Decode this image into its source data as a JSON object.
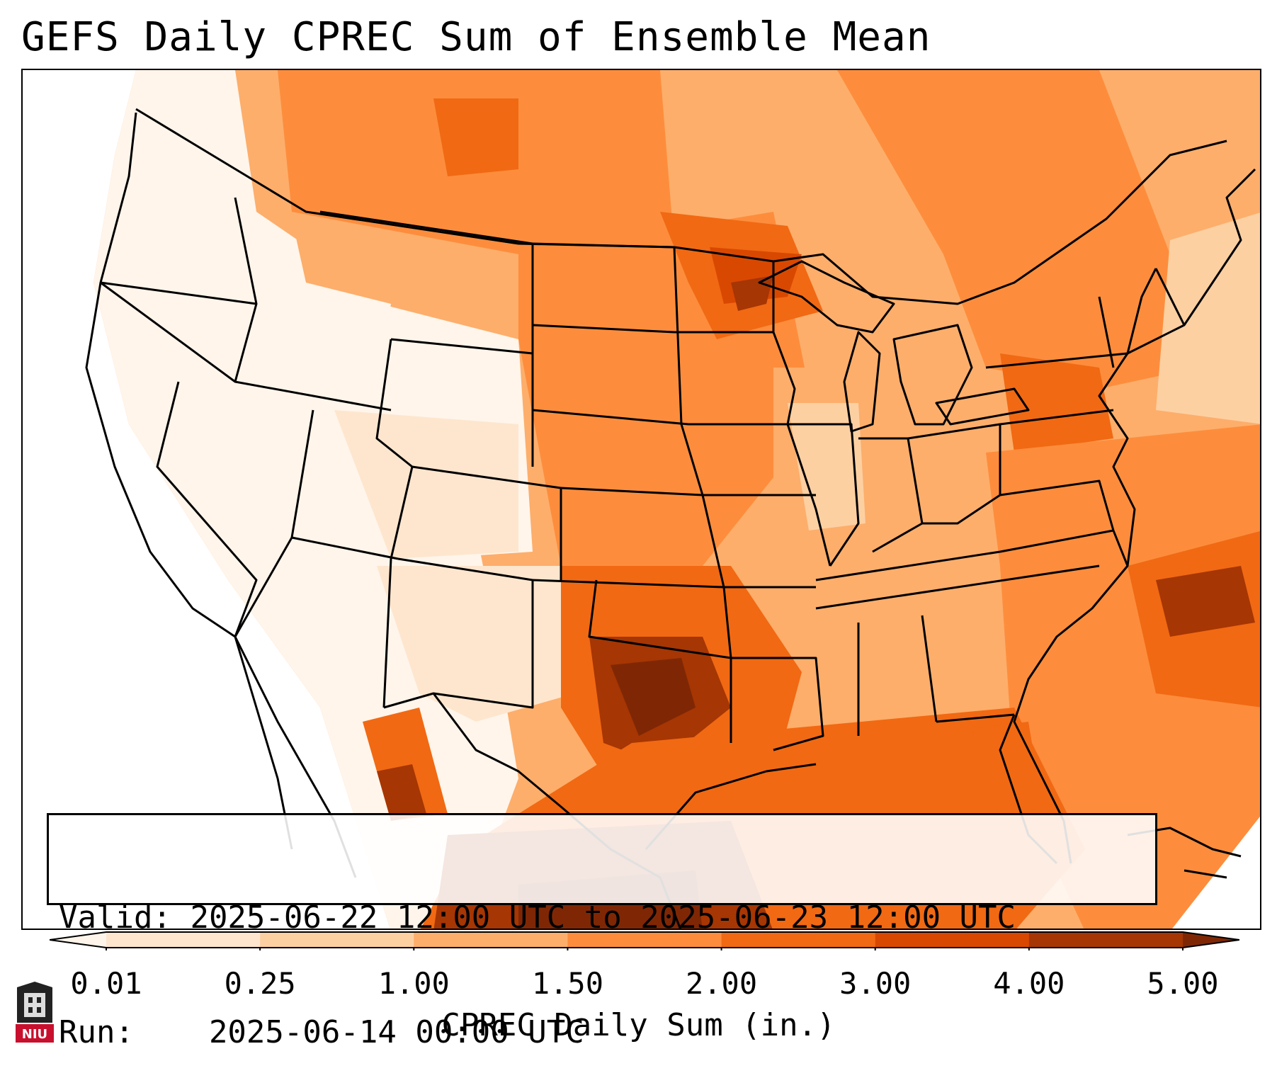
{
  "title": "GEFS Daily CPREC Sum of Ensemble Mean",
  "info": {
    "valid_label": "Valid:",
    "valid_value": "2025-06-22 12:00 UTC to 2025-06-23 12:00 UTC",
    "run_label": "Run:",
    "run_value": "2025-06-14 00:00 UTC"
  },
  "colorbar": {
    "label": "CPREC Daily Sum (in.)",
    "ticks": [
      "0.01",
      "0.25",
      "1.00",
      "1.50",
      "2.00",
      "3.00",
      "4.00",
      "5.00"
    ],
    "colors": [
      "#fff5eb",
      "#fee6ce",
      "#fdd0a2",
      "#fdae6b",
      "#fd8d3c",
      "#f16913",
      "#d94801",
      "#a63603",
      "#7f2704"
    ]
  },
  "logo": {
    "text": "NIU",
    "color": "#c8102e"
  }
}
